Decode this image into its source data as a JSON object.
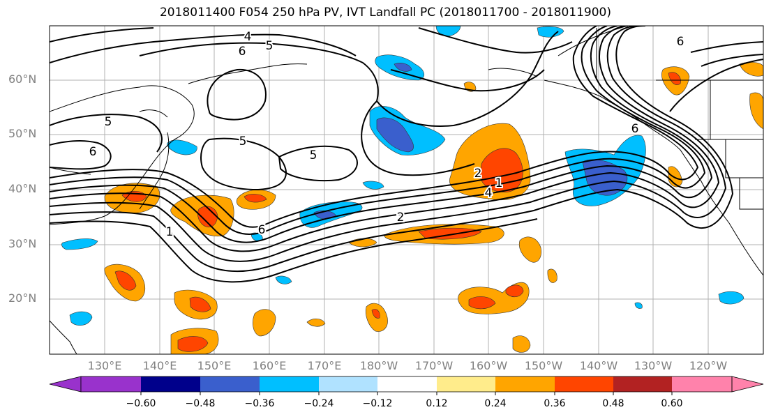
{
  "title": "2018011400 F054 250 hPa PV, IVT Landfall PC (2018011700 - 2018011900)",
  "latitude_labels": [
    "60°N",
    "50°N",
    "40°N",
    "30°N",
    "20°N"
  ],
  "longitude_labels": [
    "130°E",
    "140°E",
    "150°E",
    "160°E",
    "170°E",
    "180°W",
    "170°W",
    "160°W",
    "150°W",
    "140°W",
    "130°W",
    "120°W"
  ],
  "colorbar": {
    "tick_labels": [
      "−0.60",
      "−0.48",
      "−0.36",
      "−0.24",
      "−0.12",
      "0.12",
      "0.24",
      "0.36",
      "0.48",
      "0.60"
    ],
    "colors": [
      "#9932CC",
      "#00008B",
      "#3A5FCD",
      "#00BFFF",
      "#B0E2FF",
      "#FFFFFF",
      "#FFEC8B",
      "#FFA500",
      "#FF4500",
      "#B22222",
      "#FF82AB"
    ]
  },
  "contour_labels": [
    "4",
    "6",
    "5",
    "5",
    "6",
    "5",
    "2",
    "6",
    "1",
    "6",
    "2",
    "1",
    "4",
    "5",
    "6"
  ]
}
